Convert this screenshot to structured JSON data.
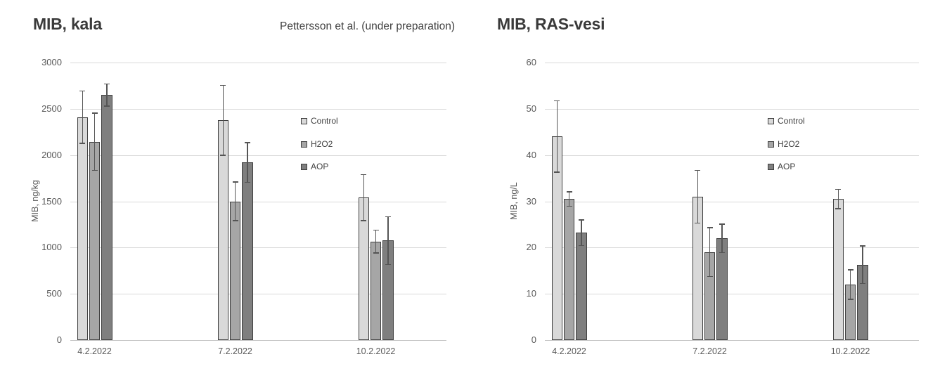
{
  "annotation": {
    "text": "Pettersson et al. (under preparation)"
  },
  "style": {
    "bar_border": "#3f3f3f",
    "gridline_color": "#d9d9d9",
    "axis_line_color": "#c3c3c3",
    "error_bar_color": "#555555",
    "tick_label_color": "#595959",
    "title_color": "#3a3a3a"
  },
  "chart_data": [
    {
      "type": "bar",
      "title": "MIB, kala",
      "ylabel": "MIB, ng/kg",
      "ylim": [
        0,
        3000
      ],
      "yticks": [
        0,
        500,
        1000,
        1500,
        2000,
        2500,
        3000
      ],
      "categories": [
        "4.2.2022",
        "7.2.2022",
        "10.2.2022"
      ],
      "grid": true,
      "legend_position": "inside-right",
      "legend_entries": [
        "Control",
        "H2O2",
        "AOP"
      ],
      "series": [
        {
          "name": "Control",
          "fill": "#d9d9d9",
          "values": [
            2410,
            2375,
            1540
          ],
          "errors": [
            290,
            385,
            255
          ]
        },
        {
          "name": "H2O2",
          "fill": "#a6a6a6",
          "values": [
            2145,
            1500,
            1065
          ],
          "errors": [
            315,
            215,
            130
          ]
        },
        {
          "name": "AOP",
          "fill": "#7f7f7f",
          "values": [
            2650,
            1920,
            1075
          ],
          "errors": [
            125,
            220,
            265
          ]
        }
      ]
    },
    {
      "type": "bar",
      "title": "MIB, RAS-vesi",
      "ylabel": "MIB, ng/L",
      "ylim": [
        0,
        60
      ],
      "yticks": [
        0,
        10,
        20,
        30,
        40,
        50,
        60
      ],
      "categories": [
        "4.2.2022",
        "7.2.2022",
        "10.2.2022"
      ],
      "grid": true,
      "legend_position": "inside-right",
      "legend_entries": [
        "Control",
        "H2O2",
        "AOP"
      ],
      "series": [
        {
          "name": "Control",
          "fill": "#d9d9d9",
          "values": [
            44,
            31,
            30.5
          ],
          "errors": [
            7.8,
            5.8,
            2.2
          ]
        },
        {
          "name": "H2O2",
          "fill": "#a6a6a6",
          "values": [
            30.5,
            19,
            12
          ],
          "errors": [
            1.7,
            5.4,
            3.3
          ]
        },
        {
          "name": "AOP",
          "fill": "#7f7f7f",
          "values": [
            23.2,
            22,
            16.3
          ],
          "errors": [
            2.9,
            3.2,
            4.2
          ]
        }
      ]
    }
  ]
}
